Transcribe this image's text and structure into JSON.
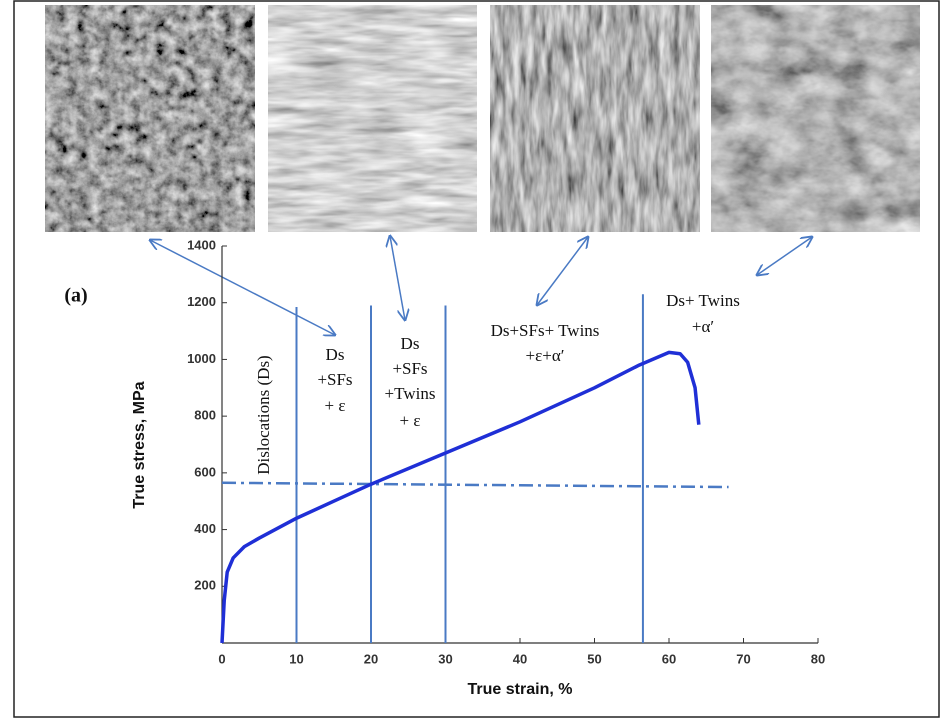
{
  "chart_data": {
    "type": "line",
    "x_label": "True strain, %",
    "y_label": "True stress, MPa",
    "annotations": [
      "(a)",
      "Dislocations (Ds)",
      "Ds",
      "+SFs",
      "+ ε",
      "Ds",
      "+SFs",
      "+Twins",
      "+ ε",
      "Ds+SFs+ Twins",
      "+ε+α′",
      "Ds+ Twins",
      "+α′"
    ],
    "x": [
      0,
      0.3,
      0.7,
      1.5,
      3,
      5,
      10,
      15,
      20,
      30,
      40,
      50,
      56,
      60,
      61.5,
      62.5,
      63.5,
      64
    ],
    "values": [
      0,
      150,
      250,
      300,
      340,
      370,
      440,
      500,
      560,
      670,
      780,
      900,
      980,
      1025,
      1020,
      990,
      900,
      770
    ],
    "color": "#1f2fd6",
    "reference_line": {
      "x": [
        0,
        68
      ],
      "values": [
        565,
        550
      ],
      "color": "#4a7ac4"
    },
    "vertical_lines": [
      {
        "x": 10,
        "top": 1185
      },
      {
        "x": 20,
        "top": 1190
      },
      {
        "x": 30,
        "top": 1190
      },
      {
        "x": 56.5,
        "top": 1230
      }
    ],
    "vertical_line_color": "#4a7ac4",
    "xlim": [
      0,
      80
    ],
    "xticks": [
      0,
      10,
      20,
      30,
      40,
      50,
      60,
      70,
      80
    ],
    "ylim": [
      0,
      1400
    ],
    "yticks": [
      200,
      400,
      600,
      800,
      1000,
      1200,
      1400
    ]
  }
}
